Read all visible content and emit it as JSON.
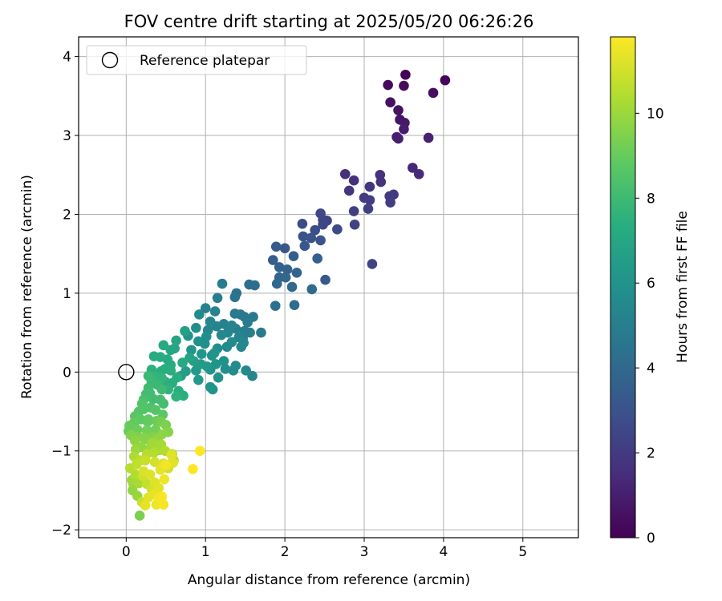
{
  "chart_data": {
    "type": "scatter",
    "title": "FOV centre drift starting at 2025/05/20 06:26:26",
    "xlabel": "Angular distance from reference (arcmin)",
    "ylabel": "Rotation from reference (arcmin)",
    "colorbar_label": "Hours from first FF file",
    "xlim": [
      -0.6,
      5.7
    ],
    "ylim": [
      -2.1,
      4.25
    ],
    "xticks": [
      0,
      1,
      2,
      3,
      4,
      5
    ],
    "yticks": [
      -2,
      -1,
      0,
      1,
      2,
      3,
      4
    ],
    "xtick_labels": [
      "0",
      "1",
      "2",
      "3",
      "4",
      "5"
    ],
    "ytick_labels": [
      "−2",
      "−1",
      "0",
      "1",
      "2",
      "3",
      "4"
    ],
    "colorbar_range": [
      0,
      11.8
    ],
    "colorbar_ticks": [
      0,
      2,
      4,
      6,
      8,
      10
    ],
    "colorbar_tick_labels": [
      "0",
      "2",
      "4",
      "6",
      "8",
      "10"
    ],
    "colormap": "viridis",
    "grid": true,
    "legend": {
      "position": "top-left",
      "entries": [
        "Reference platepar"
      ]
    },
    "reference_point": {
      "x": 0,
      "y": 0,
      "label": "Reference platepar"
    },
    "points": [
      [
        3.52,
        3.77,
        0.1
      ],
      [
        4.02,
        3.7,
        0.2
      ],
      [
        3.3,
        3.64,
        0.3
      ],
      [
        3.5,
        3.63,
        0.3
      ],
      [
        3.87,
        3.54,
        0.4
      ],
      [
        3.33,
        3.42,
        0.5
      ],
      [
        3.43,
        3.32,
        0.6
      ],
      [
        3.45,
        3.2,
        0.7
      ],
      [
        3.51,
        3.16,
        0.8
      ],
      [
        3.5,
        3.08,
        0.9
      ],
      [
        3.41,
        2.98,
        1.0
      ],
      [
        3.43,
        2.96,
        1.0
      ],
      [
        3.81,
        2.97,
        1.1
      ],
      [
        3.61,
        2.59,
        1.3
      ],
      [
        3.69,
        2.51,
        1.4
      ],
      [
        2.76,
        2.51,
        1.6
      ],
      [
        2.87,
        2.43,
        1.6
      ],
      [
        3.2,
        2.5,
        1.7
      ],
      [
        3.21,
        2.41,
        1.7
      ],
      [
        3.07,
        2.35,
        1.8
      ],
      [
        2.81,
        2.3,
        1.8
      ],
      [
        3.37,
        2.25,
        1.9
      ],
      [
        3.32,
        2.23,
        2.0
      ],
      [
        3.0,
        2.21,
        2.0
      ],
      [
        3.07,
        2.18,
        2.1
      ],
      [
        3.33,
        2.15,
        2.1
      ],
      [
        3.05,
        2.07,
        2.2
      ],
      [
        2.87,
        2.04,
        2.2
      ],
      [
        2.88,
        1.87,
        2.3
      ],
      [
        2.53,
        1.92,
        2.4
      ],
      [
        2.48,
        1.93,
        2.4
      ],
      [
        2.45,
        2.01,
        2.5
      ],
      [
        2.48,
        1.87,
        2.5
      ],
      [
        2.66,
        1.81,
        2.6
      ],
      [
        2.22,
        1.88,
        2.7
      ],
      [
        2.38,
        1.8,
        2.8
      ],
      [
        2.23,
        1.72,
        2.9
      ],
      [
        2.33,
        1.7,
        3.0
      ],
      [
        2.45,
        1.67,
        3.1
      ],
      [
        2.25,
        1.6,
        3.2
      ],
      [
        3.1,
        1.37,
        2.4
      ],
      [
        2.0,
        1.57,
        3.2
      ],
      [
        1.89,
        1.59,
        3.3
      ],
      [
        2.11,
        1.47,
        3.4
      ],
      [
        1.85,
        1.42,
        3.5
      ],
      [
        2.41,
        1.44,
        3.6
      ],
      [
        1.93,
        1.33,
        3.6
      ],
      [
        2.03,
        1.3,
        3.7
      ],
      [
        1.93,
        1.2,
        3.8
      ],
      [
        2.15,
        1.26,
        3.8
      ],
      [
        2.01,
        1.2,
        3.9
      ],
      [
        1.9,
        1.12,
        4.0
      ],
      [
        2.51,
        1.17,
        3.2
      ],
      [
        2.09,
        1.08,
        4.0
      ],
      [
        2.34,
        1.05,
        4.1
      ],
      [
        1.62,
        1.1,
        4.2
      ],
      [
        1.55,
        1.11,
        4.3
      ],
      [
        1.39,
        1.0,
        4.4
      ],
      [
        1.37,
        0.95,
        4.5
      ],
      [
        2.12,
        0.85,
        4.1
      ],
      [
        1.88,
        0.84,
        4.3
      ],
      [
        1.44,
        0.73,
        4.6
      ],
      [
        1.49,
        0.7,
        4.7
      ],
      [
        1.37,
        0.74,
        4.8
      ],
      [
        1.53,
        0.63,
        4.9
      ],
      [
        1.56,
        0.5,
        5.0
      ],
      [
        1.49,
        0.52,
        5.0
      ],
      [
        1.38,
        0.55,
        5.1
      ],
      [
        1.23,
        0.61,
        5.2
      ],
      [
        1.33,
        0.59,
        5.3
      ],
      [
        1.14,
        0.58,
        5.3
      ],
      [
        1.03,
        0.53,
        5.4
      ],
      [
        1.2,
        0.47,
        5.5
      ],
      [
        1.42,
        0.44,
        5.3
      ],
      [
        1.33,
        0.38,
        5.6
      ],
      [
        1.27,
        0.32,
        5.6
      ],
      [
        1.45,
        0.32,
        5.4
      ],
      [
        1.48,
        0.37,
        5.5
      ],
      [
        1.15,
        0.3,
        5.7
      ],
      [
        0.99,
        0.36,
        5.8
      ],
      [
        1.01,
        0.45,
        5.8
      ],
      [
        0.91,
        0.39,
        5.9
      ],
      [
        0.78,
        0.46,
        6.0
      ],
      [
        0.82,
        0.28,
        6.1
      ],
      [
        0.95,
        0.23,
        6.1
      ],
      [
        1.08,
        0.21,
        6.0
      ],
      [
        1.11,
        0.24,
        6.1
      ],
      [
        1.38,
        0.08,
        5.6
      ],
      [
        1.25,
        0.04,
        5.8
      ],
      [
        1.35,
        0.02,
        5.7
      ],
      [
        1.51,
        0.02,
        5.5
      ],
      [
        1.59,
        -0.05,
        5.4
      ],
      [
        1.06,
        0.03,
        6.0
      ],
      [
        1.16,
        -0.07,
        6.0
      ],
      [
        1.06,
        -0.19,
        6.1
      ],
      [
        1.09,
        -0.22,
        6.0
      ],
      [
        0.91,
        -0.1,
        6.3
      ],
      [
        0.88,
        0.02,
        6.3
      ],
      [
        0.75,
        0.01,
        6.5
      ],
      [
        0.69,
        -0.05,
        6.6
      ],
      [
        1.21,
        1.12,
        4.9
      ],
      [
        1.15,
        0.94,
        5.0
      ],
      [
        1.0,
        0.81,
        5.2
      ],
      [
        1.12,
        0.77,
        5.3
      ],
      [
        0.92,
        0.73,
        5.6
      ],
      [
        0.74,
        0.52,
        6.6
      ],
      [
        0.63,
        0.4,
        6.9
      ],
      [
        0.61,
        0.3,
        7.0
      ],
      [
        0.56,
        0.28,
        7.0
      ],
      [
        0.47,
        0.34,
        7.1
      ],
      [
        0.35,
        0.2,
        7.2
      ],
      [
        0.43,
        0.19,
        7.3
      ],
      [
        0.52,
        0.16,
        7.2
      ],
      [
        0.56,
        0.09,
        7.2
      ],
      [
        0.49,
        0.04,
        7.3
      ],
      [
        0.44,
        0.01,
        7.4
      ],
      [
        0.32,
        0.03,
        7.5
      ],
      [
        0.4,
        -0.05,
        7.5
      ],
      [
        0.49,
        -0.12,
        7.4
      ],
      [
        0.58,
        -0.14,
        7.3
      ],
      [
        0.66,
        -0.24,
        7.3
      ],
      [
        0.72,
        -0.3,
        7.4
      ],
      [
        0.63,
        -0.31,
        7.6
      ],
      [
        0.53,
        -0.22,
        7.6
      ],
      [
        0.32,
        -0.12,
        7.9
      ],
      [
        0.28,
        -0.05,
        7.9
      ],
      [
        0.39,
        -0.16,
        7.9
      ],
      [
        0.45,
        -0.22,
        8.0
      ],
      [
        0.34,
        -0.34,
        8.1
      ],
      [
        0.43,
        -0.35,
        8.2
      ],
      [
        0.47,
        -0.4,
        8.2
      ],
      [
        0.25,
        -0.28,
        8.1
      ],
      [
        0.22,
        -0.35,
        8.3
      ],
      [
        0.2,
        -0.4,
        8.5
      ],
      [
        0.31,
        -0.45,
        8.4
      ],
      [
        0.37,
        -0.48,
        8.6
      ],
      [
        0.46,
        -0.54,
        8.8
      ],
      [
        0.11,
        -0.56,
        8.7
      ],
      [
        0.18,
        -0.6,
        8.8
      ],
      [
        0.28,
        -0.6,
        8.9
      ],
      [
        0.08,
        -0.72,
        8.9
      ],
      [
        0.03,
        -0.75,
        9.0
      ],
      [
        0.14,
        -0.73,
        9.1
      ],
      [
        0.26,
        -0.74,
        9.2
      ],
      [
        0.37,
        -0.73,
        9.2
      ],
      [
        0.5,
        -0.67,
        9.4
      ],
      [
        0.53,
        -0.76,
        9.6
      ],
      [
        0.45,
        -0.79,
        9.7
      ],
      [
        0.44,
        -0.63,
        9.3
      ],
      [
        0.33,
        -0.82,
        9.5
      ],
      [
        0.22,
        -0.83,
        9.6
      ],
      [
        0.11,
        -0.87,
        9.7
      ],
      [
        0.06,
        -0.8,
        9.5
      ],
      [
        0.19,
        -0.95,
        9.8
      ],
      [
        0.31,
        -0.95,
        10.0
      ],
      [
        0.33,
        -0.9,
        10.1
      ],
      [
        0.42,
        -0.99,
        10.2
      ],
      [
        0.49,
        -1.0,
        10.4
      ],
      [
        0.58,
        -1.04,
        10.5
      ],
      [
        0.6,
        -1.12,
        10.6
      ],
      [
        0.55,
        -1.17,
        10.9
      ],
      [
        0.53,
        -1.22,
        11.0
      ],
      [
        0.47,
        -1.16,
        11.2
      ],
      [
        0.36,
        -1.14,
        11.0
      ],
      [
        0.24,
        -1.12,
        10.8
      ],
      [
        0.18,
        -1.12,
        10.6
      ],
      [
        0.1,
        -1.07,
        10.3
      ],
      [
        0.13,
        -1.17,
        10.7
      ],
      [
        0.05,
        -1.22,
        10.5
      ],
      [
        0.07,
        -1.37,
        10.1
      ],
      [
        0.09,
        -1.42,
        9.9
      ],
      [
        0.08,
        -1.5,
        9.8
      ],
      [
        0.16,
        -1.41,
        10.2
      ],
      [
        0.26,
        -1.42,
        10.7
      ],
      [
        0.32,
        -1.48,
        11.0
      ],
      [
        0.41,
        -1.47,
        11.3
      ],
      [
        0.48,
        -1.36,
        11.5
      ],
      [
        0.43,
        -1.24,
        11.4
      ],
      [
        0.3,
        -1.3,
        11.2
      ],
      [
        0.22,
        -1.26,
        11.1
      ],
      [
        0.14,
        -1.57,
        9.9
      ],
      [
        0.2,
        -1.65,
        10.8
      ],
      [
        0.24,
        -1.69,
        11.4
      ],
      [
        0.38,
        -1.68,
        11.5
      ],
      [
        0.47,
        -1.68,
        11.7
      ],
      [
        0.41,
        -1.6,
        11.6
      ],
      [
        0.35,
        -1.55,
        11.4
      ],
      [
        0.28,
        -1.59,
        11.3
      ],
      [
        0.17,
        -1.82,
        9.4
      ],
      [
        0.93,
        -1.0,
        11.8
      ],
      [
        0.84,
        -1.23,
        11.8
      ],
      [
        0.59,
        -1.15,
        11.3
      ],
      [
        0.57,
        -1.05,
        11.2
      ],
      [
        0.28,
        -0.2,
        8.0
      ],
      [
        0.3,
        -0.27,
        8.1
      ],
      [
        0.35,
        -0.06,
        7.7
      ],
      [
        0.45,
        -0.08,
        7.7
      ],
      [
        0.56,
        0.02,
        7.4
      ],
      [
        0.64,
        -0.07,
        7.4
      ],
      [
        0.71,
        0.12,
        7.1
      ],
      [
        0.8,
        0.18,
        6.8
      ],
      [
        0.85,
        0.14,
        6.6
      ],
      [
        0.94,
        0.1,
        6.4
      ],
      [
        1.02,
        0.07,
        6.3
      ],
      [
        1.13,
        0.1,
        6.1
      ],
      [
        1.23,
        0.14,
        5.9
      ],
      [
        0.27,
        -0.63,
        8.9
      ],
      [
        0.22,
        -0.47,
        8.5
      ],
      [
        0.16,
        -0.5,
        8.6
      ],
      [
        0.1,
        -0.64,
        8.9
      ],
      [
        0.04,
        -0.68,
        9.0
      ],
      [
        0.14,
        -0.82,
        9.4
      ],
      [
        0.26,
        -0.85,
        9.6
      ],
      [
        0.38,
        -0.62,
        9.1
      ],
      [
        0.4,
        -0.84,
        9.8
      ],
      [
        0.44,
        -0.92,
        10.2
      ],
      [
        0.35,
        -1.02,
        10.4
      ],
      [
        0.26,
        -1.04,
        10.5
      ],
      [
        0.12,
        -0.98,
        10.0
      ],
      [
        0.21,
        -1.32,
        10.9
      ],
      [
        0.12,
        -1.3,
        10.4
      ],
      [
        0.36,
        -1.4,
        11.2
      ],
      [
        0.45,
        -1.58,
        11.7
      ],
      [
        0.5,
        -1.18,
        11.6
      ],
      [
        1.7,
        0.5,
        4.8
      ],
      [
        1.47,
        0.43,
        5.1
      ],
      [
        1.6,
        0.7,
        4.7
      ],
      [
        1.28,
        0.5,
        5.3
      ],
      [
        1.06,
        0.64,
        5.4
      ],
      [
        0.88,
        0.56,
        5.8
      ]
    ]
  }
}
